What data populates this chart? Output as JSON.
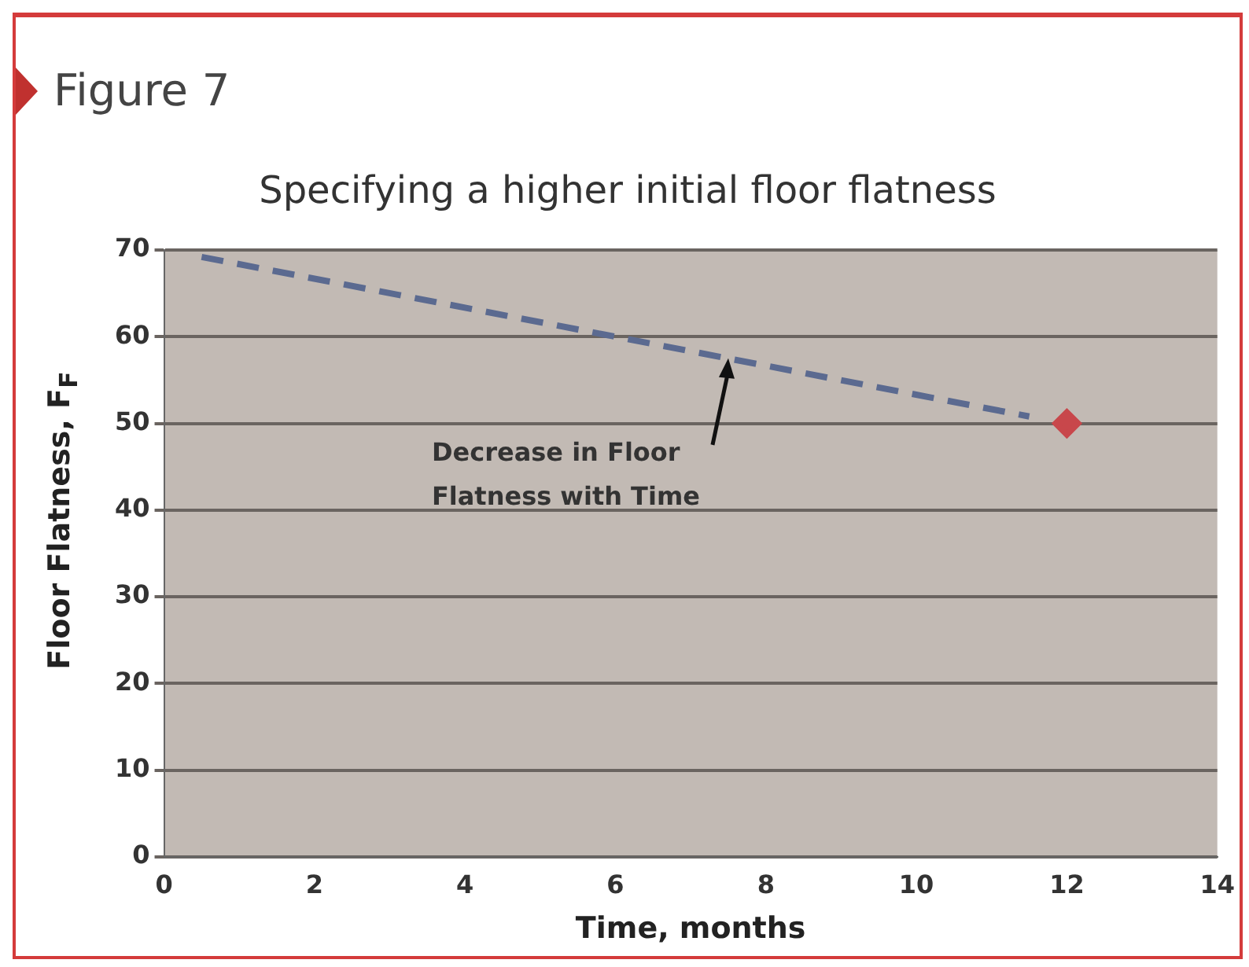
{
  "chart_data": {
    "type": "line",
    "title": "Specifying a higher initial floor flatness",
    "xlabel": "Time, months",
    "ylabel": "Floor Flatness, F$_{F}$",
    "annotations": [
      "Figure 7",
      {
        "text": "Decrease in Floor Flatness with Time",
        "x": 7.5,
        "y": 57.5
      }
    ],
    "series": [
      {
        "type": "line",
        "x": [
          0.5,
          11.5
        ],
        "values": [
          69.2,
          50.8
        ],
        "color": "#5b6a90",
        "line_style": "dashed",
        "marker": "none"
      },
      {
        "type": "scatter",
        "x": [
          12
        ],
        "values": [
          50
        ],
        "color": "#c8474b",
        "marker": "diamond"
      }
    ],
    "xlim": [
      0,
      14
    ],
    "xticks": [
      0,
      2,
      4,
      6,
      8,
      10,
      12,
      14
    ],
    "ylim": [
      0,
      70
    ],
    "yticks": [
      0,
      10,
      20,
      30,
      40,
      50,
      60,
      70
    ],
    "grid": "y",
    "legend": false
  }
}
